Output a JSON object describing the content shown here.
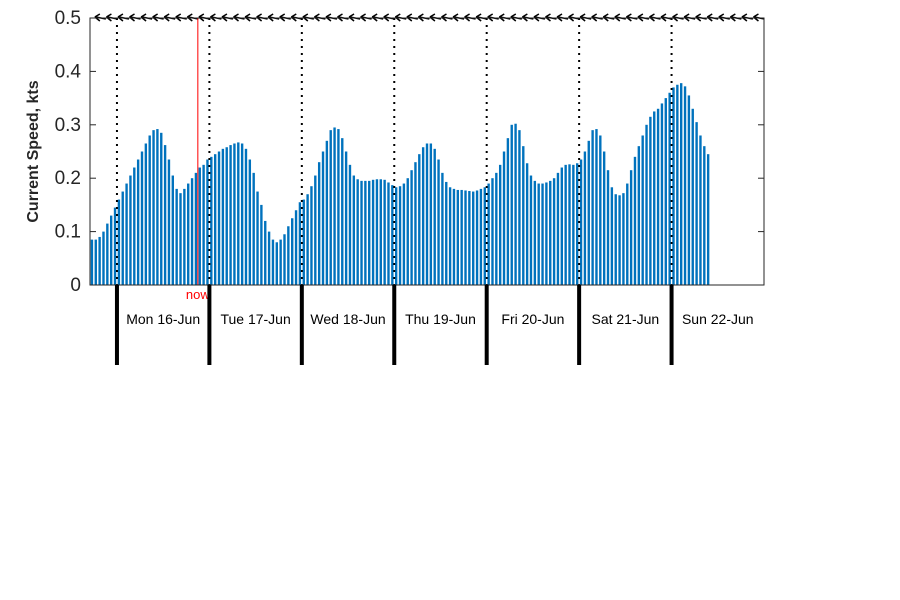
{
  "chart_data": {
    "type": "bar",
    "title": "",
    "xlabel": "",
    "ylabel": "Current Speed, kts",
    "ylim": [
      0,
      0.5
    ],
    "yticks": [
      0,
      0.1,
      0.2,
      0.3,
      0.4,
      0.5
    ],
    "ytick_labels": [
      "0",
      "0.1",
      "0.2",
      "0.3",
      "0.4",
      "0.5"
    ],
    "bar_color": "#0072bd",
    "x_unit": "hours since Mon 16-Jun 00:00 (hourly bars)",
    "x_range_hours": [
      -7,
      168
    ],
    "grid": false,
    "day_labels": [
      "Mon 16-Jun",
      "Tue 17-Jun",
      "Wed 18-Jun",
      "Thu 19-Jun",
      "Fri 20-Jun",
      "Sat 21-Jun",
      "Sun 22-Jun"
    ],
    "day_boundaries_hours": [
      0,
      24,
      48,
      72,
      96,
      120,
      144
    ],
    "now": {
      "label": "now",
      "hour": 21,
      "color": "#ff0000"
    },
    "direction_arrows": {
      "color": "#000000",
      "value": 0.5,
      "hours": [
        -6,
        -3,
        0,
        3,
        6,
        9,
        12,
        15,
        18,
        21,
        24,
        27,
        30,
        33,
        36,
        39,
        42,
        45,
        48,
        51,
        54,
        57,
        60,
        63,
        66,
        69,
        72,
        75,
        78,
        81,
        84,
        87,
        90,
        93,
        96,
        99,
        102,
        105,
        108,
        111,
        114,
        117,
        120,
        123,
        126,
        129,
        132,
        135,
        138,
        141,
        144,
        147,
        150,
        153,
        156,
        159,
        162,
        165
      ]
    },
    "x_start_hour": -7,
    "values": [
      0.085,
      0.085,
      0.09,
      0.1,
      0.115,
      0.13,
      0.145,
      0.16,
      0.175,
      0.19,
      0.205,
      0.22,
      0.235,
      0.25,
      0.265,
      0.28,
      0.29,
      0.292,
      0.285,
      0.262,
      0.235,
      0.205,
      0.18,
      0.172,
      0.18,
      0.19,
      0.2,
      0.21,
      0.22,
      0.225,
      0.235,
      0.24,
      0.245,
      0.25,
      0.255,
      0.258,
      0.262,
      0.265,
      0.267,
      0.265,
      0.255,
      0.235,
      0.21,
      0.175,
      0.15,
      0.12,
      0.1,
      0.085,
      0.08,
      0.085,
      0.095,
      0.11,
      0.125,
      0.14,
      0.155,
      0.16,
      0.17,
      0.185,
      0.205,
      0.23,
      0.25,
      0.27,
      0.29,
      0.295,
      0.292,
      0.275,
      0.25,
      0.225,
      0.205,
      0.198,
      0.195,
      0.195,
      0.195,
      0.197,
      0.198,
      0.198,
      0.197,
      0.192,
      0.187,
      0.183,
      0.185,
      0.19,
      0.2,
      0.215,
      0.23,
      0.245,
      0.258,
      0.265,
      0.265,
      0.255,
      0.235,
      0.21,
      0.193,
      0.183,
      0.18,
      0.178,
      0.178,
      0.177,
      0.176,
      0.175,
      0.177,
      0.18,
      0.183,
      0.19,
      0.2,
      0.21,
      0.225,
      0.25,
      0.275,
      0.3,
      0.302,
      0.29,
      0.26,
      0.228,
      0.205,
      0.195,
      0.19,
      0.19,
      0.192,
      0.195,
      0.2,
      0.21,
      0.22,
      0.225,
      0.226,
      0.225,
      0.228,
      0.235,
      0.25,
      0.27,
      0.29,
      0.292,
      0.28,
      0.25,
      0.215,
      0.183,
      0.17,
      0.168,
      0.172,
      0.19,
      0.215,
      0.24,
      0.26,
      0.28,
      0.3,
      0.315,
      0.325,
      0.33,
      0.34,
      0.35,
      0.36,
      0.37,
      0.375,
      0.378,
      0.372,
      0.355,
      0.33,
      0.305,
      0.28,
      0.26,
      0.245
    ]
  }
}
